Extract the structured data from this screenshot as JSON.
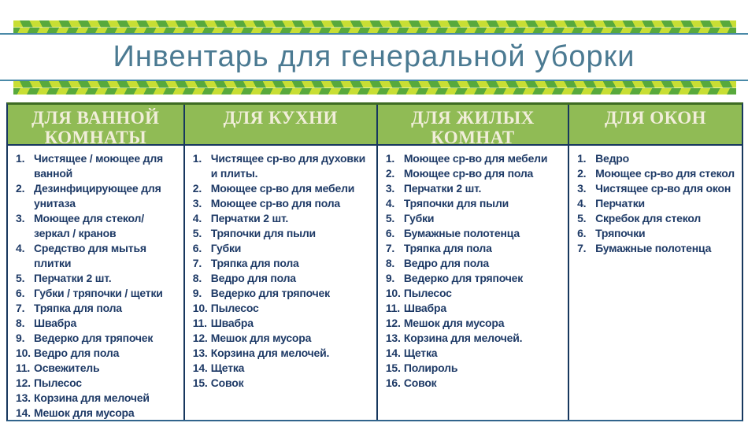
{
  "title": "Инвентарь для генеральной уборки",
  "columns": [
    {
      "header": "ДЛЯ ВАННОЙ КОМНАТЫ",
      "items": [
        "Чистящее / моющее для ванной",
        "Дезинфицирующее для унитаза",
        "Моющее для стекол/ зеркал / кранов",
        "Средство для мытья плитки",
        "Перчатки 2 шт.",
        "Губки / тряпочки / щетки",
        "Тряпка для пола",
        "Швабра",
        "Ведерко для тряпочек",
        "Ведро для пола",
        "Освежитель",
        "Пылесос",
        "Корзина для мелочей",
        "Мешок для мусора"
      ]
    },
    {
      "header": "ДЛЯ КУХНИ",
      "items": [
        "Чистящее ср-во для духовки и плиты.",
        "Моющее ср-во для мебели",
        "Моющее ср-во для пола",
        "Перчатки 2 шт.",
        "Тряпочки для пыли",
        "Губки",
        "Тряпка для пола",
        "Ведро для пола",
        "Ведерко для тряпочек",
        "Пылесос",
        "Швабра",
        "Мешок для мусора",
        "Корзина для мелочей.",
        "Щетка",
        "Совок"
      ]
    },
    {
      "header": "ДЛЯ ЖИЛЫХ КОМНАТ",
      "items": [
        "Моющее ср-во для мебели",
        "Моющее ср-во для пола",
        "Перчатки 2 шт.",
        "Тряпочки для пыли",
        "Губки",
        "Бумажные полотенца",
        "Тряпка для пола",
        "Ведро для пола",
        "Ведерко для тряпочек",
        "Пылесос",
        "Швабра",
        "Мешок для мусора",
        "Корзина для мелочей.",
        "Щетка",
        "Полироль",
        "Совок"
      ]
    },
    {
      "header": "ДЛЯ ОКОН",
      "items": [
        "Ведро",
        "Моющее ср-во для стекол",
        "Чистящее ср-во для окон",
        "Перчатки",
        "Скребок для стекол",
        "Тряпочки",
        "Бумажные полотенца"
      ]
    }
  ],
  "colors": {
    "tape_light_green": "#c8de34",
    "tape_green": "#58a93c",
    "divider_blue": "#4a8aa8",
    "title_text": "#4b7a92",
    "header_background": "#90bb55",
    "header_text": "#f1eeda",
    "item_text": "#1e3a66",
    "table_border": "#17375e",
    "table_top_border": "#3d6b22"
  }
}
